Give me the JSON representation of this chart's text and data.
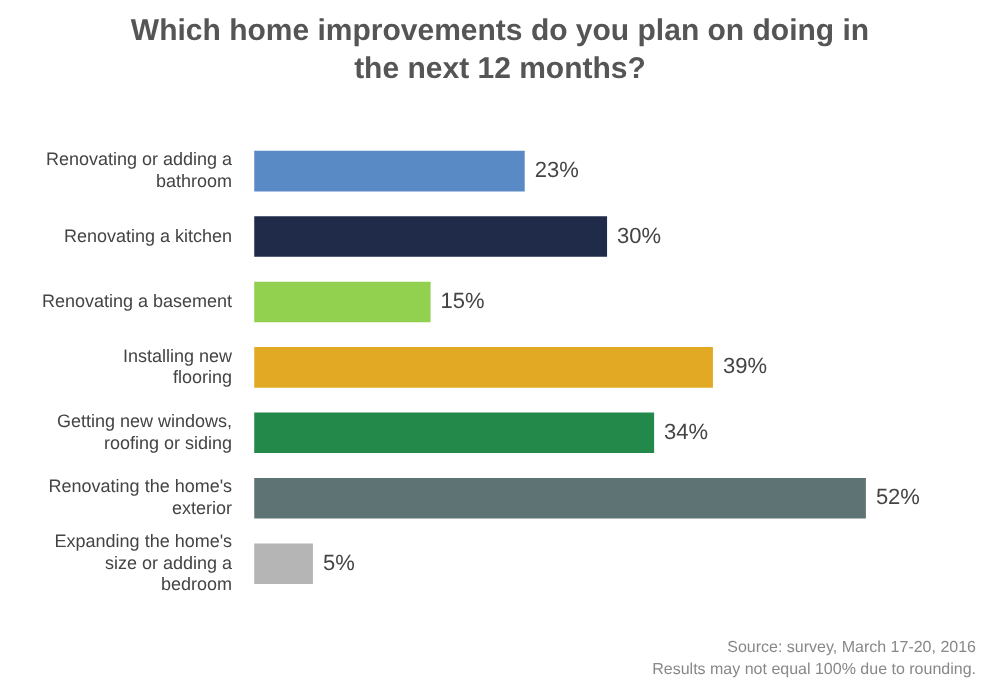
{
  "chart_data": {
    "type": "bar",
    "orientation": "horizontal",
    "title": "Which home improvements do you plan on doing in the next 12 months?",
    "categories": [
      "Renovating or adding a bathroom",
      "Renovating a kitchen",
      "Renovating a basement",
      "Installing new flooring",
      "Getting new windows, roofing or siding",
      "Renovating the home's exterior",
      "Expanding the home's size or adding a bedroom"
    ],
    "values": [
      23,
      30,
      15,
      39,
      34,
      52,
      5
    ],
    "colors": [
      "#5a8ac6",
      "#1f2b48",
      "#92d050",
      "#e2a924",
      "#23894a",
      "#5e7373",
      "#b5b5b5"
    ],
    "data_labels": true,
    "value_labels": [
      "23%",
      "30%",
      "15%",
      "39%",
      "34%",
      "52%",
      "5%"
    ],
    "legend": false,
    "annotations": [
      "Source: survey, March 17-20, 2016",
      "Results may not equal 100% due to rounding."
    ]
  }
}
